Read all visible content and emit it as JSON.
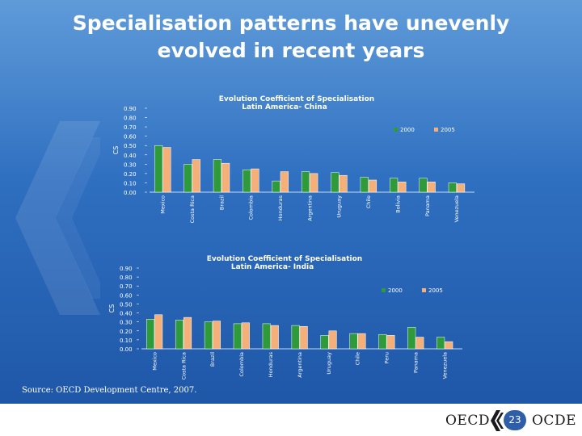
{
  "slide": {
    "title_line1": "Specialisation patterns have unevenly",
    "title_line2": "evolved in recent years",
    "source": "Source: OECD Development Centre, 2007.",
    "page_number": "23",
    "logo_left": "OECD",
    "logo_right": "OCDE"
  },
  "colors": {
    "series_2000": "#2e9a3a",
    "series_2005": "#f5b07a",
    "panel_bg": "#ffffff"
  },
  "chart_data": [
    {
      "type": "bar",
      "title": "Evolution  Coefficient of Specialisation",
      "subtitle": "Latin America- China",
      "ylabel": "CS",
      "xlabel": "",
      "ylim": [
        0,
        0.9
      ],
      "ytick_labels": [
        "0.90",
        "0.80",
        "0.70",
        "0.60",
        "0.50",
        "0.40",
        "0.30",
        "0.20",
        "0.10",
        "0.00"
      ],
      "grid": false,
      "legend_position": "top-right",
      "categories": [
        "Mexico",
        "Costa Rica",
        "Brazil",
        "Colombia",
        "Honduras",
        "Argentina",
        "Uruguay",
        "Chile",
        "Bolivia",
        "Panama",
        "Venezuela"
      ],
      "series": [
        {
          "name": "2000",
          "values": [
            0.5,
            0.3,
            0.35,
            0.24,
            0.12,
            0.22,
            0.21,
            0.16,
            0.15,
            0.15,
            0.1
          ]
        },
        {
          "name": "2005",
          "values": [
            0.48,
            0.35,
            0.31,
            0.25,
            0.22,
            0.2,
            0.18,
            0.13,
            0.11,
            0.11,
            0.09
          ]
        }
      ]
    },
    {
      "type": "bar",
      "title": "Evolution  Coefficient of Specialisation",
      "subtitle": "Latin America- India",
      "ylabel": "CS",
      "xlabel": "",
      "ylim": [
        0,
        0.9
      ],
      "ytick_labels": [
        "0.90",
        "0.80",
        "0.70",
        "0.60",
        "0.50",
        "0.40",
        "0.30",
        "0.20",
        "0.10",
        "0.00"
      ],
      "grid": false,
      "legend_position": "top-right",
      "categories": [
        "Mexico",
        "Costa Rica",
        "Brazil",
        "Colombia",
        "Honduras",
        "Argentina",
        "Uruguay",
        "Chile",
        "Peru",
        "Panama",
        "Venezuela"
      ],
      "series": [
        {
          "name": "2000",
          "values": [
            0.33,
            0.32,
            0.3,
            0.28,
            0.28,
            0.26,
            0.15,
            0.17,
            0.16,
            0.24,
            0.13
          ]
        },
        {
          "name": "2005",
          "values": [
            0.38,
            0.35,
            0.31,
            0.29,
            0.26,
            0.25,
            0.2,
            0.17,
            0.15,
            0.13,
            0.08
          ]
        }
      ]
    }
  ]
}
